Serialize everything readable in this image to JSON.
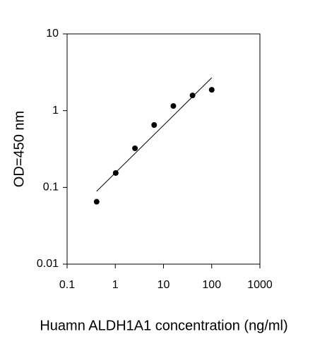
{
  "chart_data": {
    "type": "scatter",
    "x_label": "Huamn ALDH1A1 concentration (ng/ml)",
    "y_label": "OD=450 nm",
    "x": [
      0.41,
      1.02,
      2.56,
      6.4,
      16,
      40,
      100
    ],
    "values": [
      0.065,
      0.154,
      0.323,
      0.65,
      1.15,
      1.58,
      1.87
    ],
    "color": "#000000",
    "fit": {
      "x": [
        0.41,
        100
      ],
      "y": [
        0.089,
        2.68
      ]
    },
    "xlim": [
      0.1,
      1000
    ],
    "xticks": [
      0.1,
      1,
      10,
      100,
      1000
    ],
    "ylim": [
      0.01,
      10
    ],
    "yticks": [
      0.01,
      0.1,
      1,
      10
    ],
    "log_x": true,
    "log_y": true,
    "grid": false
  }
}
